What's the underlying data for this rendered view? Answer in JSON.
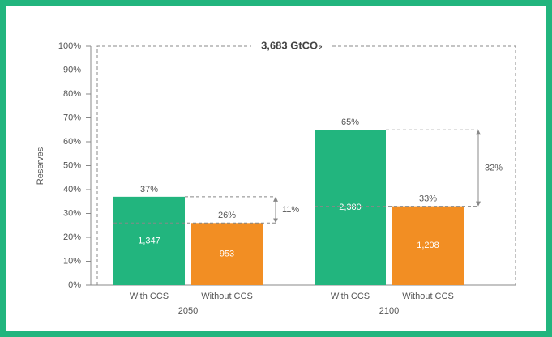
{
  "chart_data": {
    "type": "bar",
    "y_label": "Reserves",
    "total_label": "3,683 GtCO₂",
    "categories": [
      "2050",
      "2100"
    ],
    "series": [
      {
        "name": "With CCS",
        "color": "#22b57e",
        "values": [
          37,
          65
        ],
        "value_labels": [
          "37%",
          "65%"
        ],
        "amounts": [
          1347,
          2380
        ],
        "amount_labels": [
          "1,347",
          "2,380"
        ]
      },
      {
        "name": "Without CCS",
        "color": "#f28e23",
        "values": [
          26,
          33
        ],
        "value_labels": [
          "26%",
          "33%"
        ],
        "amounts": [
          953,
          1208
        ],
        "amount_labels": [
          "953",
          "1,208"
        ]
      }
    ],
    "differences": [
      {
        "value": 11,
        "label": "11%"
      },
      {
        "value": 32,
        "label": "32%"
      }
    ],
    "ylim": [
      0,
      100
    ],
    "yticks": [
      {
        "value": 0,
        "label": "0%"
      },
      {
        "value": 10,
        "label": "10%"
      },
      {
        "value": 20,
        "label": "20%"
      },
      {
        "value": 30,
        "label": "30%"
      },
      {
        "value": 40,
        "label": "40%"
      },
      {
        "value": 50,
        "label": "50%"
      },
      {
        "value": 60,
        "label": "60%"
      },
      {
        "value": 70,
        "label": "70%"
      },
      {
        "value": 80,
        "label": "80%"
      },
      {
        "value": 90,
        "label": "90%"
      },
      {
        "value": 100,
        "label": "100%"
      }
    ]
  }
}
